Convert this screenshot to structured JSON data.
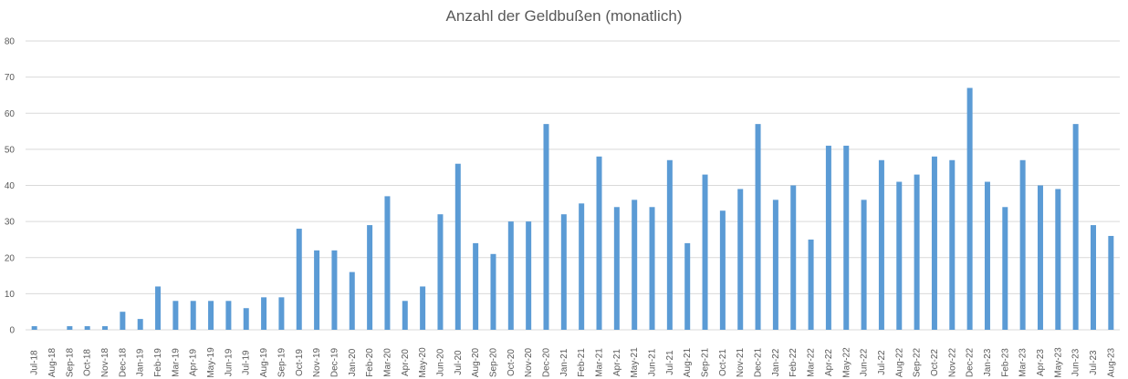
{
  "chart_data": {
    "type": "bar",
    "title": "Anzahl der Geldbußen (monatlich)",
    "xlabel": "",
    "ylabel": "",
    "ylim": [
      0,
      80
    ],
    "yticks": [
      0,
      10,
      20,
      30,
      40,
      50,
      60,
      70,
      80
    ],
    "grid": true,
    "bar_color": "#5b9bd5",
    "categories": [
      "Jul-18",
      "Aug-18",
      "Sep-18",
      "Oct-18",
      "Nov-18",
      "Dec-18",
      "Jan-19",
      "Feb-19",
      "Mar-19",
      "Apr-19",
      "May-19",
      "Jun-19",
      "Jul-19",
      "Aug-19",
      "Sep-19",
      "Oct-19",
      "Nov-19",
      "Dec-19",
      "Jan-20",
      "Feb-20",
      "Mar-20",
      "Apr-20",
      "May-20",
      "Jun-20",
      "Jul-20",
      "Aug-20",
      "Sep-20",
      "Oct-20",
      "Nov-20",
      "Dec-20",
      "Jan-21",
      "Feb-21",
      "Mar-21",
      "Apr-21",
      "May-21",
      "Jun-21",
      "Jul-21",
      "Aug-21",
      "Sep-21",
      "Oct-21",
      "Nov-21",
      "Dec-21",
      "Jan-22",
      "Feb-22",
      "Mar-22",
      "Apr-22",
      "May-22",
      "Jun-22",
      "Jul-22",
      "Aug-22",
      "Sep-22",
      "Oct-22",
      "Nov-22",
      "Dec-22",
      "Jan-23",
      "Feb-23",
      "Mar-23",
      "Apr-23",
      "May-23",
      "Jun-23",
      "Jul-23",
      "Aug-23"
    ],
    "values": [
      1,
      0,
      1,
      1,
      1,
      5,
      3,
      12,
      8,
      8,
      8,
      8,
      6,
      9,
      9,
      28,
      22,
      22,
      16,
      29,
      37,
      8,
      12,
      32,
      46,
      24,
      21,
      30,
      30,
      57,
      32,
      35,
      48,
      34,
      36,
      34,
      47,
      24,
      43,
      33,
      39,
      57,
      36,
      40,
      25,
      51,
      51,
      36,
      47,
      41,
      43,
      48,
      47,
      67,
      41,
      34,
      47,
      40,
      39,
      57,
      29,
      26
    ]
  }
}
